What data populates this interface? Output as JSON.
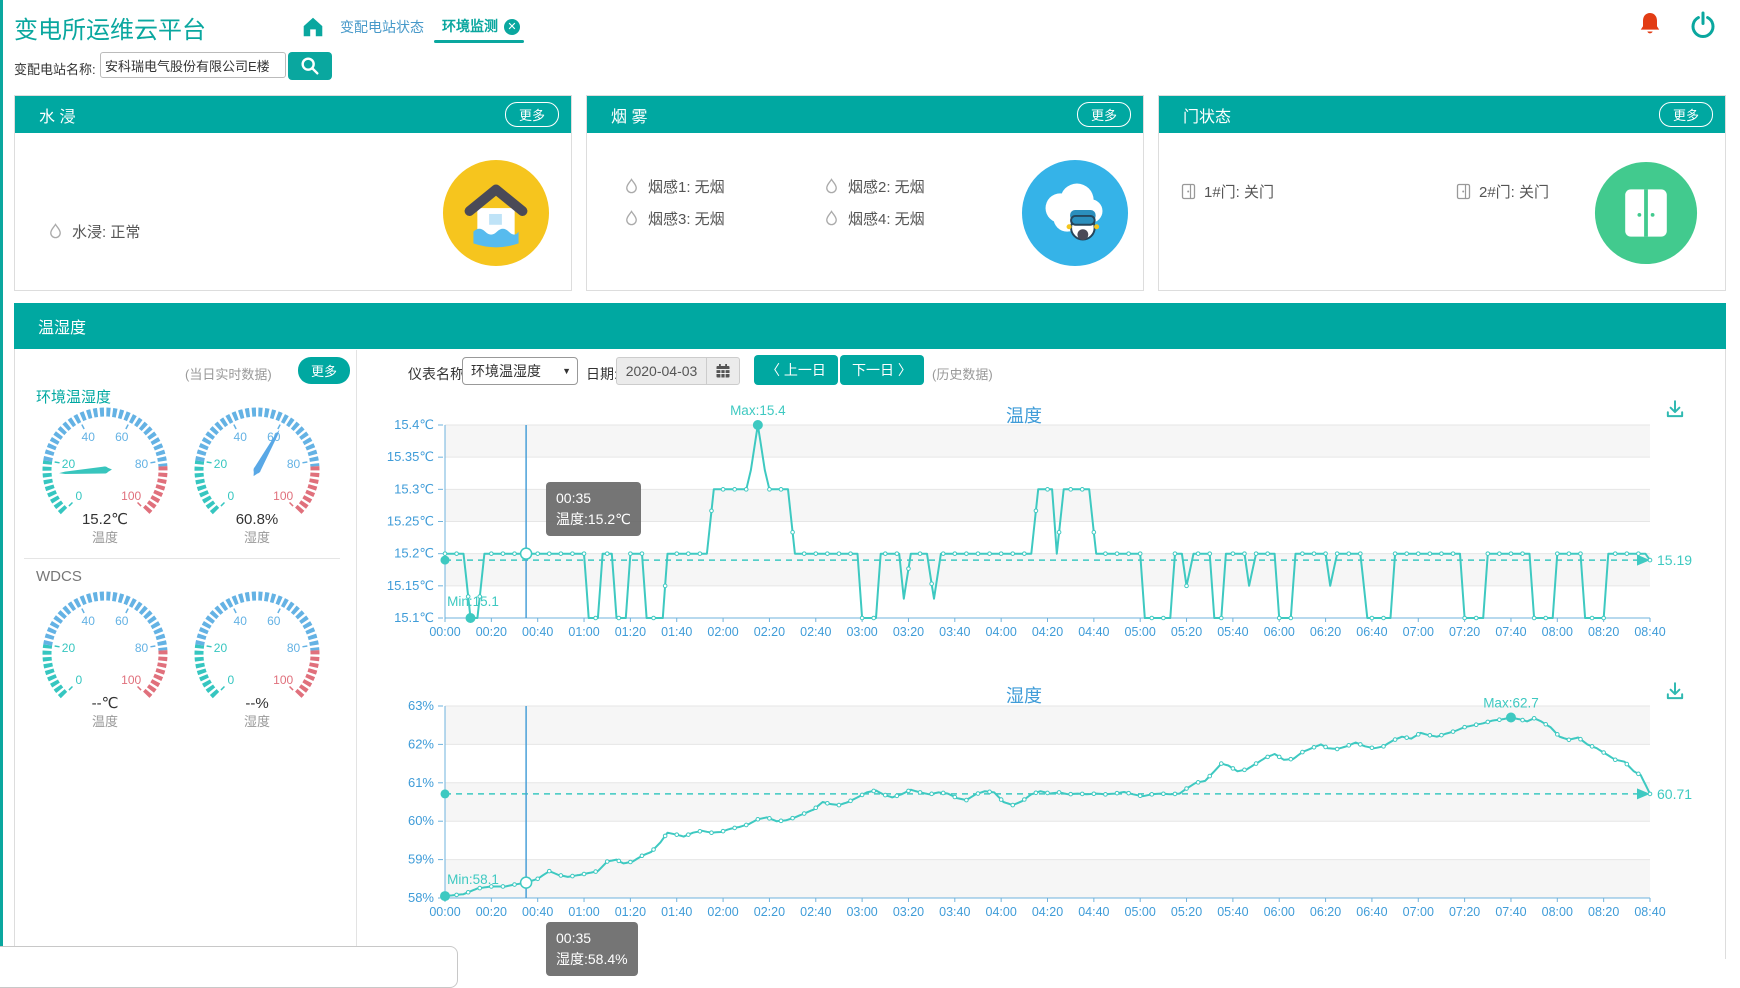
{
  "app": {
    "title": "变电所运维云平台",
    "search_label": "变配电站名称:",
    "search_value": "安科瑞电气股份有限公司E楼"
  },
  "nav": {
    "tabs": [
      {
        "label": "变配电站状态",
        "active": false
      },
      {
        "label": "环境监测",
        "active": true
      }
    ]
  },
  "icons": {
    "close": "✕",
    "chevron_left": "〈",
    "chevron_right": "〉",
    "dropdown_arrow": "▼"
  },
  "panels": {
    "water": {
      "title": "水 浸",
      "more": "更多",
      "items": [
        {
          "text": "水浸: 正常"
        }
      ]
    },
    "smoke": {
      "title": "烟 雾",
      "more": "更多",
      "items": [
        {
          "text": "烟感1: 无烟"
        },
        {
          "text": "烟感2: 无烟"
        },
        {
          "text": "烟感3: 无烟"
        },
        {
          "text": "烟感4: 无烟"
        }
      ]
    },
    "door": {
      "title": "门状态",
      "more": "更多",
      "items": [
        {
          "text": "1#门: 关门"
        },
        {
          "text": "2#门: 关门"
        }
      ]
    }
  },
  "env": {
    "title": "温湿度",
    "realtime_note": "(当日实时数据)",
    "more": "更多",
    "group1": "环境温湿度",
    "group2": "WDCS",
    "gauges": [
      {
        "value": 15.2,
        "display": "15.2℃",
        "label": "温度",
        "needle": "#38c5bd"
      },
      {
        "value": 60.8,
        "display": "60.8%",
        "label": "湿度",
        "needle": "#59a8e6"
      },
      {
        "value": null,
        "display": "--℃",
        "label": "温度",
        "needle": "#38c5bd"
      },
      {
        "value": null,
        "display": "--%",
        "label": "湿度",
        "needle": "#59a8e6"
      }
    ],
    "controls": {
      "meter_label": "仪表名称:",
      "meter_value": "环境温湿度",
      "date_label": "日期:",
      "date_value": "2020-04-03",
      "prev": "上一日",
      "next": "下一日",
      "history_note": "(历史数据)"
    }
  },
  "colors": {
    "primary": "#00a8a1",
    "chart_line": "#3ec9c1",
    "axis_label": "#3f9cd8",
    "axis_line": "#6fb3dd",
    "gauge_teal": "#36c6c0",
    "gauge_blue": "#64b2e4",
    "gauge_red": "#e0707c",
    "alert_red": "#e23c14"
  },
  "chart_data": [
    {
      "type": "line",
      "title": "温度",
      "series_name": "温度",
      "ylim": [
        15.1,
        15.4
      ],
      "y_ticks": [
        "15.4℃",
        "15.35℃",
        "15.3℃",
        "15.25℃",
        "15.2℃",
        "15.15℃",
        "15.1℃"
      ],
      "x_range": [
        0,
        520
      ],
      "x_ticks": [
        "00:00",
        "00:20",
        "00:40",
        "01:00",
        "01:20",
        "01:40",
        "02:00",
        "02:20",
        "02:40",
        "03:00",
        "03:20",
        "03:40",
        "04:00",
        "04:20",
        "04:40",
        "05:00",
        "05:20",
        "05:40",
        "06:00",
        "06:20",
        "06:40",
        "07:00",
        "07:20",
        "07:40",
        "08:00",
        "08:20",
        "08:40"
      ],
      "avg": {
        "value": 15.19,
        "label": "15.19"
      },
      "max": {
        "x": 135,
        "value": 15.4,
        "label": "Max:15.4"
      },
      "min": {
        "x": 11,
        "value": 15.1,
        "label": "Min:15.1"
      },
      "hover": {
        "x": 35,
        "value": 15.2,
        "time": "00:35",
        "text": "温度:15.2℃"
      },
      "points": [
        [
          0,
          15.2
        ],
        [
          8,
          15.2
        ],
        [
          11,
          15.1
        ],
        [
          14,
          15.1
        ],
        [
          17,
          15.2
        ],
        [
          60,
          15.2
        ],
        [
          62,
          15.1
        ],
        [
          66,
          15.1
        ],
        [
          68,
          15.2
        ],
        [
          72,
          15.2
        ],
        [
          74,
          15.1
        ],
        [
          78,
          15.1
        ],
        [
          80,
          15.2
        ],
        [
          85,
          15.2
        ],
        [
          87,
          15.1
        ],
        [
          94,
          15.1
        ],
        [
          96,
          15.2
        ],
        [
          113,
          15.2
        ],
        [
          116,
          15.3
        ],
        [
          130,
          15.3
        ],
        [
          132,
          15.33
        ],
        [
          135,
          15.4
        ],
        [
          138,
          15.33
        ],
        [
          140,
          15.3
        ],
        [
          148,
          15.3
        ],
        [
          151,
          15.2
        ],
        [
          178,
          15.2
        ],
        [
          180,
          15.1
        ],
        [
          186,
          15.1
        ],
        [
          188,
          15.2
        ],
        [
          196,
          15.2
        ],
        [
          198,
          15.13
        ],
        [
          201,
          15.2
        ],
        [
          208,
          15.2
        ],
        [
          211,
          15.13
        ],
        [
          214,
          15.2
        ],
        [
          253,
          15.2
        ],
        [
          256,
          15.3
        ],
        [
          262,
          15.3
        ],
        [
          264,
          15.2
        ],
        [
          267,
          15.3
        ],
        [
          278,
          15.3
        ],
        [
          281,
          15.2
        ],
        [
          300,
          15.2
        ],
        [
          302,
          15.1
        ],
        [
          313,
          15.1
        ],
        [
          315,
          15.2
        ],
        [
          318,
          15.2
        ],
        [
          320,
          15.15
        ],
        [
          323,
          15.2
        ],
        [
          330,
          15.2
        ],
        [
          332,
          15.1
        ],
        [
          335,
          15.1
        ],
        [
          337,
          15.2
        ],
        [
          345,
          15.2
        ],
        [
          347,
          15.15
        ],
        [
          350,
          15.2
        ],
        [
          358,
          15.2
        ],
        [
          360,
          15.1
        ],
        [
          365,
          15.1
        ],
        [
          367,
          15.2
        ],
        [
          380,
          15.2
        ],
        [
          382,
          15.15
        ],
        [
          385,
          15.2
        ],
        [
          395,
          15.2
        ],
        [
          398,
          15.1
        ],
        [
          408,
          15.1
        ],
        [
          410,
          15.2
        ],
        [
          438,
          15.2
        ],
        [
          440,
          15.1
        ],
        [
          448,
          15.1
        ],
        [
          450,
          15.2
        ],
        [
          468,
          15.2
        ],
        [
          470,
          15.1
        ],
        [
          478,
          15.1
        ],
        [
          480,
          15.2
        ],
        [
          490,
          15.2
        ],
        [
          492,
          15.1
        ],
        [
          500,
          15.1
        ],
        [
          502,
          15.2
        ],
        [
          518,
          15.2
        ],
        [
          520,
          15.19
        ]
      ]
    },
    {
      "type": "line",
      "title": "湿度",
      "series_name": "湿度",
      "ylim": [
        58,
        63
      ],
      "y_ticks": [
        "63%",
        "62%",
        "61%",
        "60%",
        "59%",
        "58%"
      ],
      "x_range": [
        0,
        520
      ],
      "x_ticks": [
        "00:00",
        "00:20",
        "00:40",
        "01:00",
        "01:20",
        "01:40",
        "02:00",
        "02:20",
        "02:40",
        "03:00",
        "03:20",
        "03:40",
        "04:00",
        "04:20",
        "04:40",
        "05:00",
        "05:20",
        "05:40",
        "06:00",
        "06:20",
        "06:40",
        "07:00",
        "07:20",
        "07:40",
        "08:00",
        "08:20",
        "08:40"
      ],
      "avg": {
        "value": 60.71,
        "label": "60.71"
      },
      "max": {
        "x": 460,
        "value": 62.7,
        "label": "Max:62.7"
      },
      "min": {
        "x": 0,
        "value": 58.05,
        "label": "Min:58.1"
      },
      "hover": {
        "x": 35,
        "value": 58.4,
        "time": "00:35",
        "text": "湿度:58.4%"
      },
      "points": [
        [
          0,
          58.05
        ],
        [
          8,
          58.1
        ],
        [
          14,
          58.25
        ],
        [
          20,
          58.3
        ],
        [
          26,
          58.3
        ],
        [
          30,
          58.35
        ],
        [
          35,
          58.4
        ],
        [
          40,
          58.5
        ],
        [
          45,
          58.7
        ],
        [
          49,
          58.6
        ],
        [
          53,
          58.55
        ],
        [
          58,
          58.6
        ],
        [
          62,
          58.65
        ],
        [
          66,
          58.7
        ],
        [
          70,
          58.95
        ],
        [
          74,
          59.0
        ],
        [
          77,
          58.9
        ],
        [
          81,
          58.95
        ],
        [
          85,
          59.1
        ],
        [
          89,
          59.2
        ],
        [
          93,
          59.45
        ],
        [
          96,
          59.7
        ],
        [
          100,
          59.65
        ],
        [
          103,
          59.6
        ],
        [
          107,
          59.7
        ],
        [
          111,
          59.75
        ],
        [
          115,
          59.7
        ],
        [
          119,
          59.72
        ],
        [
          123,
          59.8
        ],
        [
          127,
          59.85
        ],
        [
          131,
          59.92
        ],
        [
          135,
          60.05
        ],
        [
          139,
          60.1
        ],
        [
          143,
          60.0
        ],
        [
          147,
          60.02
        ],
        [
          151,
          60.1
        ],
        [
          155,
          60.2
        ],
        [
          159,
          60.3
        ],
        [
          163,
          60.5
        ],
        [
          166,
          60.45
        ],
        [
          170,
          60.42
        ],
        [
          174,
          60.5
        ],
        [
          178,
          60.62
        ],
        [
          182,
          60.75
        ],
        [
          186,
          60.8
        ],
        [
          189,
          60.7
        ],
        [
          193,
          60.62
        ],
        [
          197,
          60.7
        ],
        [
          201,
          60.82
        ],
        [
          205,
          60.75
        ],
        [
          209,
          60.7
        ],
        [
          213,
          60.75
        ],
        [
          217,
          60.72
        ],
        [
          221,
          60.6
        ],
        [
          225,
          60.55
        ],
        [
          229,
          60.7
        ],
        [
          233,
          60.78
        ],
        [
          237,
          60.75
        ],
        [
          241,
          60.5
        ],
        [
          245,
          60.42
        ],
        [
          249,
          60.52
        ],
        [
          253,
          60.7
        ],
        [
          257,
          60.78
        ],
        [
          261,
          60.72
        ],
        [
          265,
          60.75
        ],
        [
          269,
          60.7
        ],
        [
          273,
          60.72
        ],
        [
          277,
          60.7
        ],
        [
          281,
          60.72
        ],
        [
          285,
          60.7
        ],
        [
          289,
          60.72
        ],
        [
          293,
          60.76
        ],
        [
          297,
          60.7
        ],
        [
          301,
          60.65
        ],
        [
          305,
          60.7
        ],
        [
          309,
          60.72
        ],
        [
          313,
          60.7
        ],
        [
          317,
          60.72
        ],
        [
          320,
          60.85
        ],
        [
          324,
          61.0
        ],
        [
          328,
          61.05
        ],
        [
          332,
          61.3
        ],
        [
          335,
          61.5
        ],
        [
          338,
          61.45
        ],
        [
          342,
          61.3
        ],
        [
          346,
          61.35
        ],
        [
          350,
          61.5
        ],
        [
          354,
          61.65
        ],
        [
          358,
          61.75
        ],
        [
          362,
          61.6
        ],
        [
          366,
          61.62
        ],
        [
          370,
          61.8
        ],
        [
          374,
          61.9
        ],
        [
          378,
          62.0
        ],
        [
          381,
          61.9
        ],
        [
          385,
          61.88
        ],
        [
          389,
          61.95
        ],
        [
          393,
          62.05
        ],
        [
          397,
          61.95
        ],
        [
          401,
          61.9
        ],
        [
          405,
          61.95
        ],
        [
          409,
          62.1
        ],
        [
          413,
          62.2
        ],
        [
          417,
          62.15
        ],
        [
          421,
          62.3
        ],
        [
          424,
          62.25
        ],
        [
          428,
          62.2
        ],
        [
          432,
          62.28
        ],
        [
          436,
          62.35
        ],
        [
          440,
          62.45
        ],
        [
          444,
          62.5
        ],
        [
          448,
          62.55
        ],
        [
          452,
          62.62
        ],
        [
          456,
          62.65
        ],
        [
          460,
          62.7
        ],
        [
          464,
          62.65
        ],
        [
          467,
          62.6
        ],
        [
          470,
          62.68
        ],
        [
          473,
          62.6
        ],
        [
          477,
          62.45
        ],
        [
          481,
          62.2
        ],
        [
          485,
          62.12
        ],
        [
          489,
          62.18
        ],
        [
          493,
          62.0
        ],
        [
          497,
          61.9
        ],
        [
          501,
          61.75
        ],
        [
          505,
          61.6
        ],
        [
          509,
          61.55
        ],
        [
          513,
          61.3
        ],
        [
          516,
          61.2
        ],
        [
          520,
          60.71
        ]
      ]
    }
  ]
}
